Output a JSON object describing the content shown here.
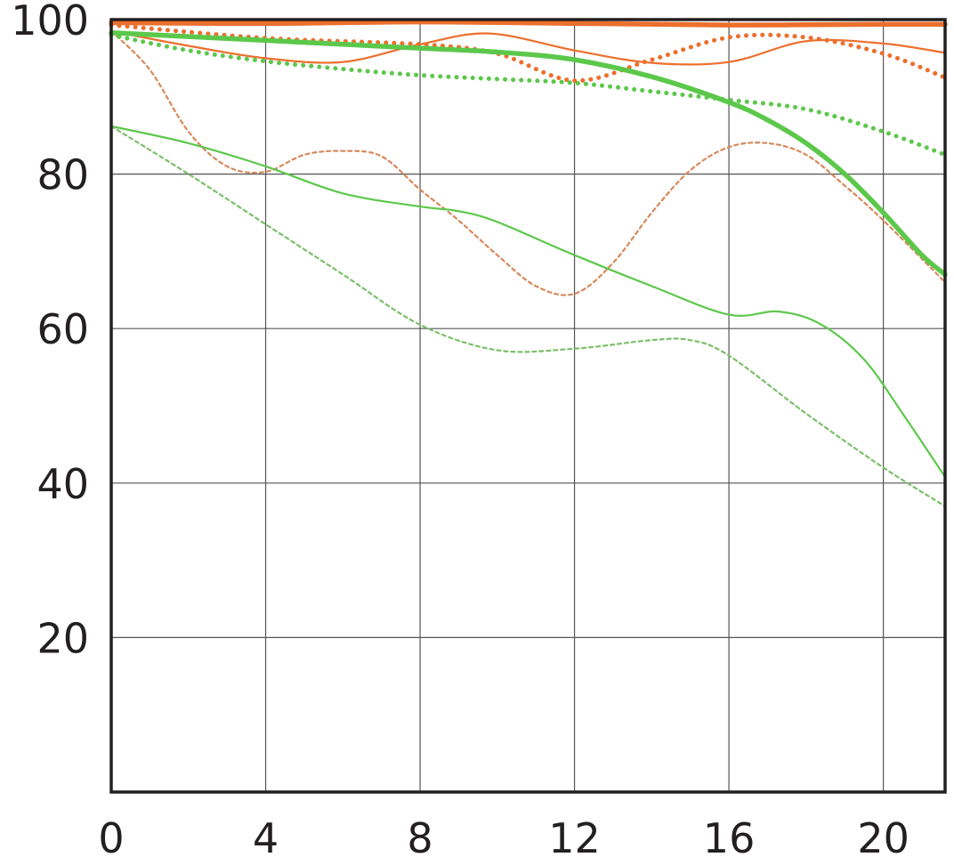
{
  "chart_data": {
    "type": "line",
    "title": "",
    "xlabel": "",
    "ylabel": "",
    "xlim": [
      0,
      21.6
    ],
    "ylim": [
      0,
      100
    ],
    "x_ticks": [
      0,
      4,
      8,
      12,
      16,
      20
    ],
    "y_ticks": [
      20,
      40,
      60,
      80,
      100
    ],
    "x_tick_labels": [
      "0",
      "4",
      "8",
      "12",
      "16",
      "20"
    ],
    "y_tick_labels": [
      "20",
      "40",
      "60",
      "80",
      "100"
    ],
    "grid": true,
    "legend": "none",
    "colors": {
      "orange": "#ec6f2d",
      "green": "#5cc84b",
      "orange_dim": "#d8885a",
      "green_dim": "#7bbf6a"
    },
    "series": [
      {
        "color": "orange",
        "style": "solid",
        "weight": "thick",
        "x": [
          0,
          4,
          8,
          12,
          16,
          20,
          21.6
        ],
        "y": [
          99.6,
          99.5,
          99.7,
          99.5,
          99.3,
          99.4,
          99.4
        ]
      },
      {
        "color": "orange",
        "style": "dotted",
        "weight": "thick",
        "x": [
          0,
          4,
          8,
          10,
          12,
          14,
          16,
          18,
          20,
          21.6
        ],
        "y": [
          99.3,
          97.6,
          96.8,
          95.6,
          92.1,
          94.8,
          97.7,
          97.7,
          95.6,
          92.5
        ]
      },
      {
        "color": "orange",
        "style": "solid",
        "weight": "thin",
        "x": [
          0,
          2,
          4,
          6,
          8,
          9.8,
          12,
          14,
          16,
          18,
          20,
          21.6
        ],
        "y": [
          98.5,
          96.6,
          95.0,
          94.5,
          96.8,
          98.2,
          96.0,
          94.4,
          94.5,
          97.2,
          96.9,
          95.7
        ]
      },
      {
        "color": "orange",
        "style": "dashed",
        "weight": "thin",
        "x": [
          0,
          1,
          2,
          3,
          4,
          5,
          6,
          7,
          8,
          9,
          10,
          11,
          12,
          13,
          14,
          15,
          16,
          17,
          18,
          19,
          20,
          21.6
        ],
        "y": [
          98.5,
          93.5,
          85.5,
          81.0,
          80.3,
          82.5,
          83.0,
          82.3,
          78.0,
          74.0,
          69.5,
          65.5,
          64.5,
          68.5,
          75.0,
          80.5,
          83.5,
          84.0,
          82.5,
          78.5,
          74.0,
          66.0
        ]
      },
      {
        "color": "green",
        "style": "solid",
        "weight": "thick",
        "x": [
          0,
          2,
          4,
          6,
          8,
          10,
          12,
          14,
          16,
          17,
          18,
          19,
          20,
          21,
          21.6
        ],
        "y": [
          98.3,
          97.8,
          97.3,
          96.8,
          96.3,
          95.8,
          94.8,
          92.6,
          89.3,
          87.0,
          84.0,
          80.0,
          75.0,
          69.5,
          67.0
        ]
      },
      {
        "color": "green",
        "style": "dotted",
        "weight": "thick",
        "x": [
          0,
          2,
          4,
          6,
          8,
          10,
          12,
          14,
          16,
          18,
          20,
          21.6
        ],
        "y": [
          98.0,
          96.0,
          94.6,
          93.6,
          92.8,
          92.3,
          91.8,
          90.7,
          89.6,
          88.4,
          85.5,
          82.5
        ]
      },
      {
        "color": "green",
        "style": "solid",
        "weight": "thin",
        "x": [
          0,
          2,
          4,
          6,
          8,
          9,
          10,
          12,
          14,
          16,
          17.3,
          18.4,
          19.5,
          20.5,
          21.6
        ],
        "y": [
          86.2,
          84.0,
          81.0,
          77.5,
          75.8,
          75.2,
          73.8,
          69.5,
          65.5,
          61.8,
          62.2,
          60.5,
          56.0,
          49.0,
          40.8
        ]
      },
      {
        "color": "green",
        "style": "dashed",
        "weight": "thin",
        "x": [
          0,
          2,
          4,
          6,
          8,
          10,
          12,
          14,
          15,
          16,
          18,
          20,
          21.6
        ],
        "y": [
          86.2,
          80.0,
          73.5,
          67.0,
          60.5,
          57.2,
          57.4,
          58.5,
          58.5,
          56.5,
          49.0,
          42.0,
          37.0
        ]
      }
    ]
  }
}
